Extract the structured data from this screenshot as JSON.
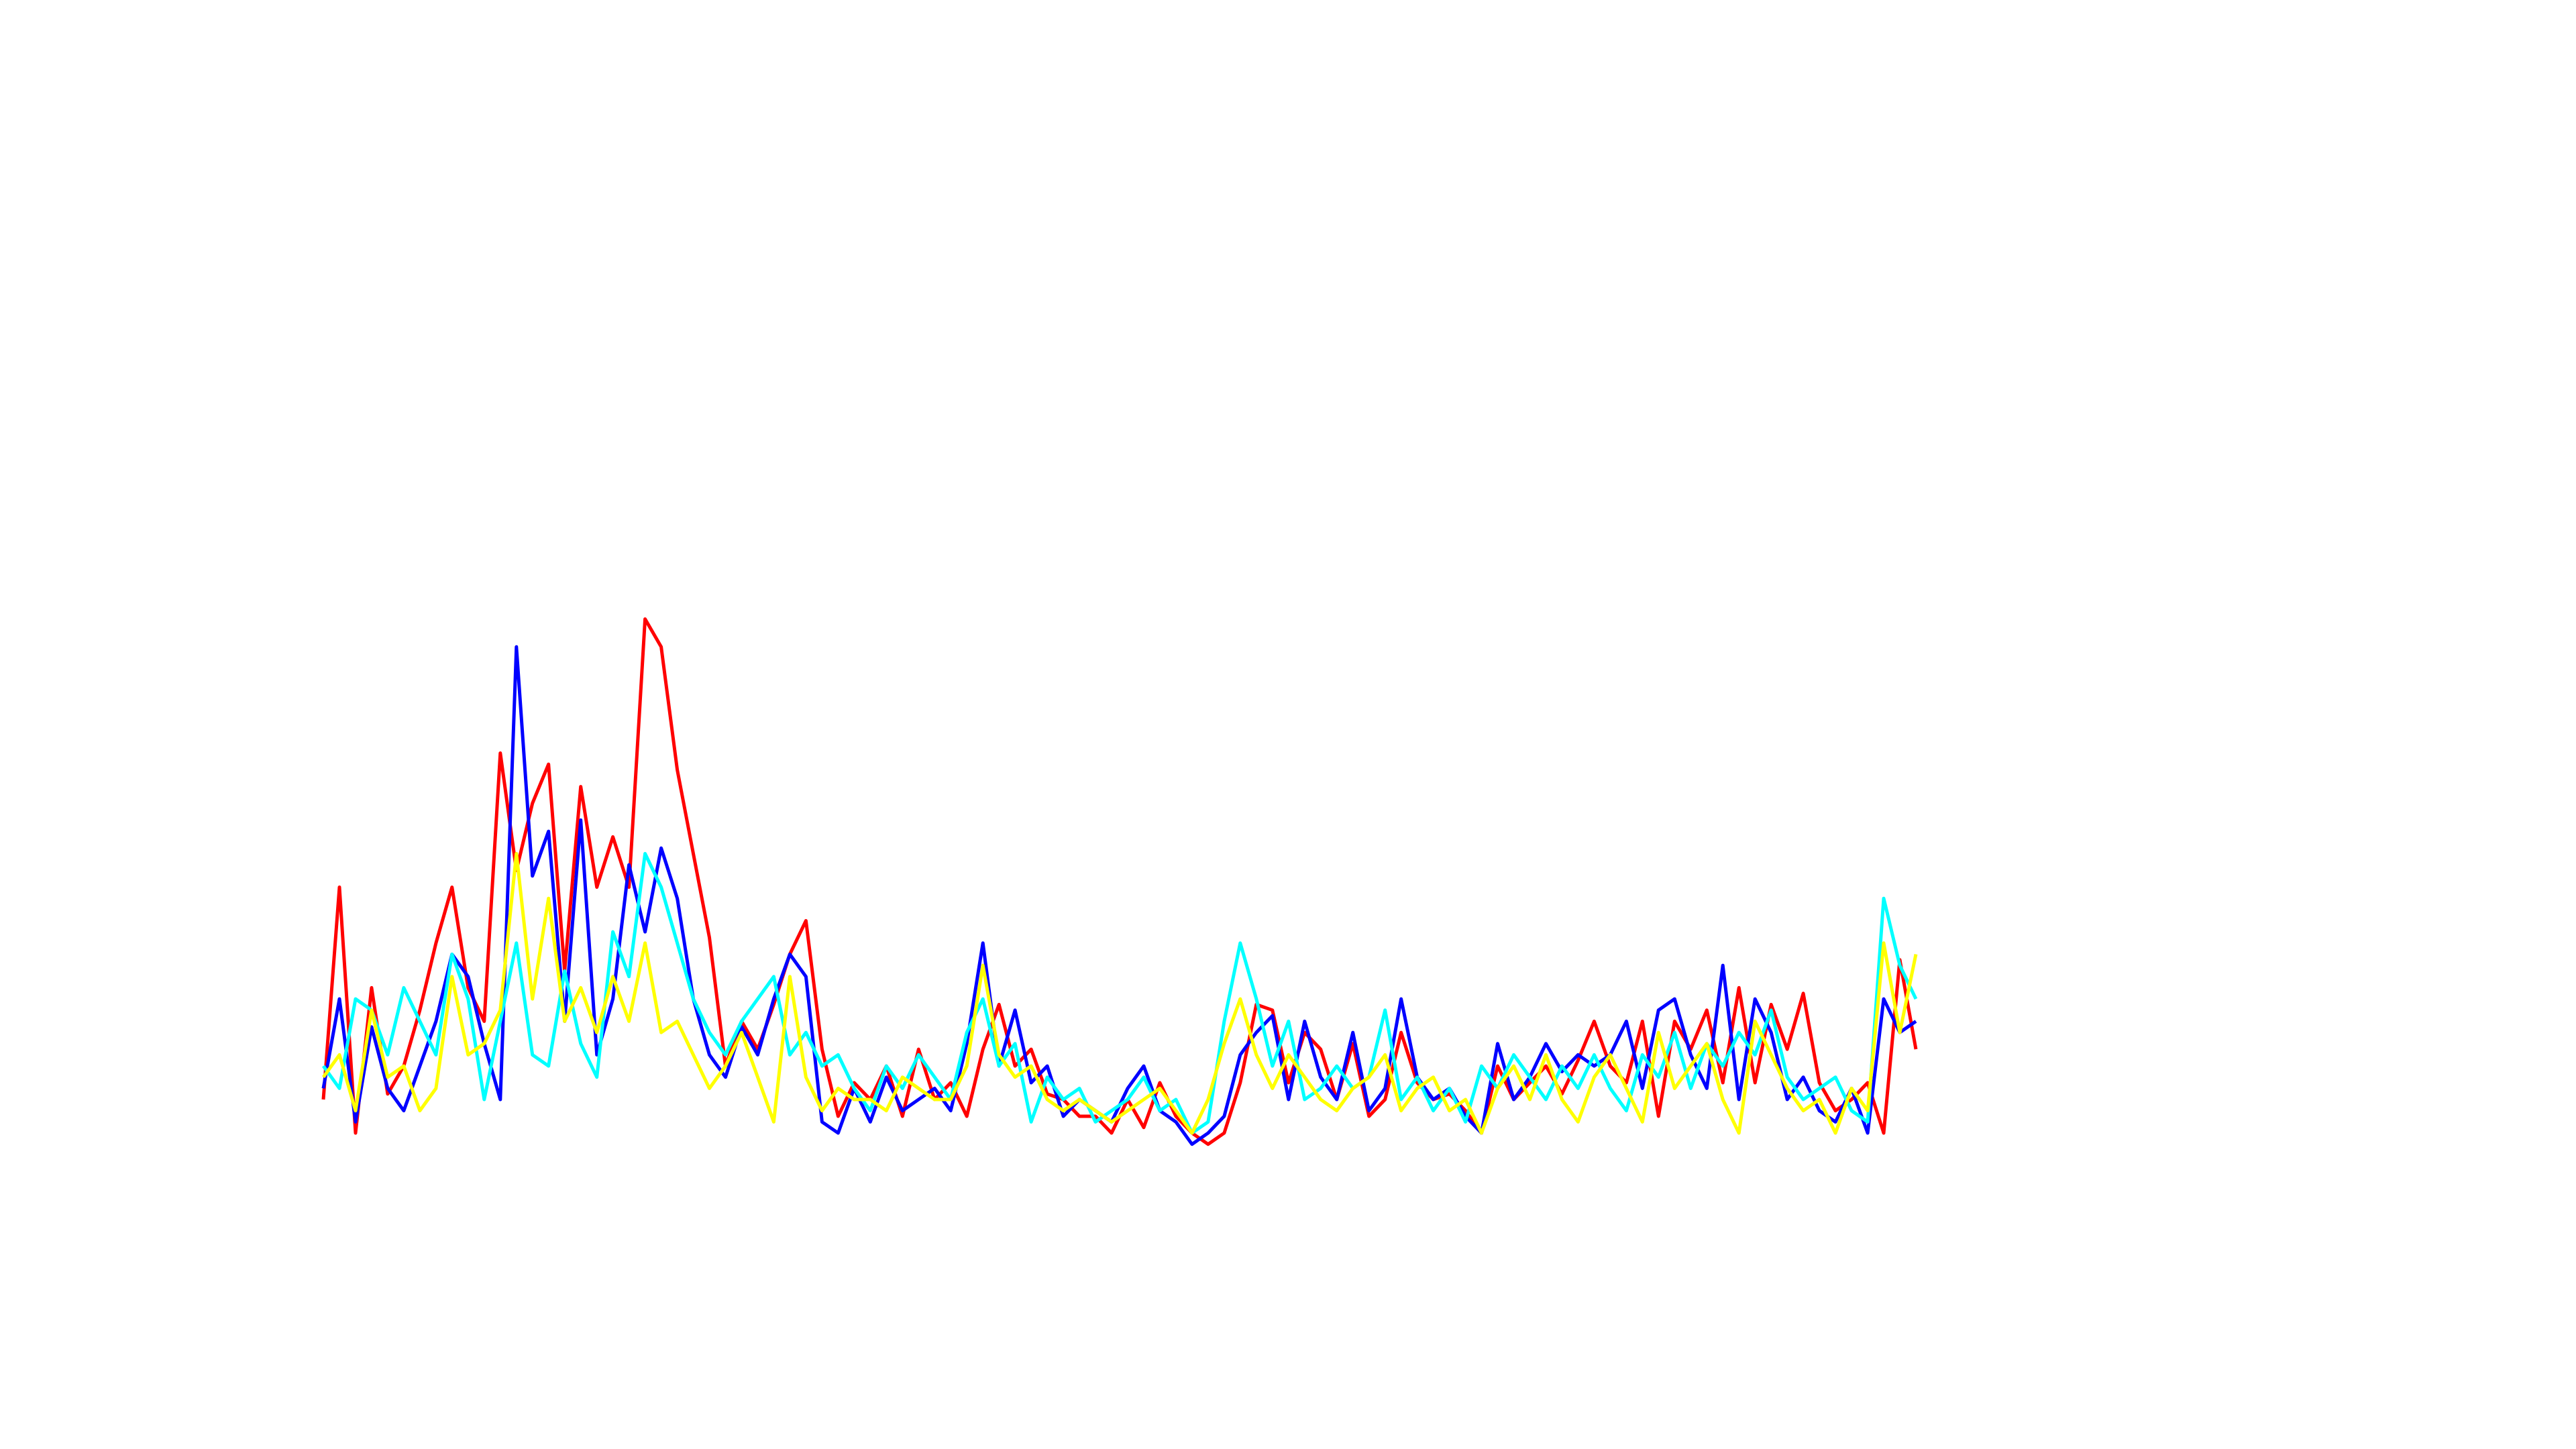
{
  "chart_data": {
    "type": "line",
    "ylim": [
      0,
      100
    ],
    "series": [
      {
        "color": "#ff0000",
        "values": [
          12,
          50,
          6,
          32,
          13,
          18,
          28,
          40,
          50,
          32,
          26,
          74,
          53,
          65,
          72,
          35,
          68,
          50,
          59,
          50,
          98,
          93,
          71,
          56,
          41,
          18,
          26,
          21,
          29,
          38,
          44,
          21,
          9,
          15,
          12,
          18,
          9,
          21,
          12,
          15,
          9,
          21,
          29,
          18,
          21,
          13,
          12,
          9,
          9,
          6,
          12,
          7,
          15,
          9,
          6,
          4,
          6,
          15,
          29,
          28,
          15,
          24,
          21,
          12,
          22,
          9,
          12,
          24,
          15,
          12,
          13,
          10,
          6,
          18,
          12,
          15,
          18,
          13,
          19,
          26,
          18,
          15,
          26,
          9,
          26,
          21,
          28,
          15,
          32,
          15,
          29,
          21,
          31,
          15,
          10,
          12,
          15,
          6,
          37,
          21
        ]
      },
      {
        "color": "#0000ff",
        "values": [
          14,
          30,
          8,
          25,
          14,
          10,
          18,
          26,
          38,
          34,
          22,
          12,
          93,
          52,
          60,
          26,
          62,
          20,
          30,
          54,
          42,
          57,
          48,
          30,
          20,
          16,
          25,
          20,
          30,
          38,
          34,
          8,
          6,
          14,
          8,
          16,
          10,
          12,
          14,
          10,
          22,
          40,
          18,
          28,
          15,
          18,
          9,
          12,
          10,
          8,
          14,
          18,
          10,
          8,
          4,
          6,
          9,
          20,
          24,
          27,
          12,
          26,
          16,
          12,
          24,
          10,
          14,
          30,
          16,
          12,
          14,
          9,
          6,
          22,
          12,
          16,
          22,
          17,
          20,
          18,
          20,
          26,
          14,
          28,
          30,
          20,
          14,
          36,
          12,
          30,
          24,
          12,
          16,
          10,
          8,
          14,
          6,
          30,
          24,
          26
        ]
      },
      {
        "color": "#00ffff",
        "values": [
          18,
          14,
          30,
          28,
          20,
          32,
          26,
          20,
          38,
          30,
          12,
          26,
          40,
          20,
          18,
          35,
          22,
          16,
          42,
          34,
          56,
          50,
          40,
          30,
          24,
          20,
          26,
          30,
          34,
          20,
          24,
          18,
          20,
          14,
          10,
          18,
          14,
          20,
          16,
          12,
          24,
          30,
          18,
          22,
          8,
          16,
          12,
          14,
          8,
          10,
          12,
          16,
          10,
          12,
          6,
          8,
          26,
          40,
          30,
          18,
          26,
          12,
          14,
          18,
          14,
          16,
          28,
          12,
          16,
          10,
          14,
          8,
          18,
          14,
          20,
          16,
          12,
          18,
          14,
          20,
          14,
          10,
          20,
          16,
          24,
          14,
          22,
          18,
          24,
          20,
          28,
          16,
          12,
          14,
          16,
          10,
          8,
          48,
          36,
          30
        ]
      },
      {
        "color": "#ffff00",
        "values": [
          16,
          20,
          10,
          28,
          16,
          18,
          10,
          14,
          34,
          20,
          22,
          28,
          56,
          30,
          48,
          26,
          32,
          24,
          34,
          26,
          40,
          24,
          26,
          20,
          14,
          18,
          24,
          16,
          8,
          34,
          16,
          10,
          14,
          12,
          12,
          10,
          16,
          14,
          12,
          12,
          18,
          36,
          20,
          16,
          18,
          12,
          10,
          12,
          10,
          8,
          10,
          12,
          14,
          10,
          6,
          12,
          22,
          30,
          20,
          14,
          20,
          16,
          12,
          10,
          14,
          16,
          20,
          10,
          14,
          16,
          10,
          12,
          6,
          14,
          18,
          12,
          20,
          12,
          8,
          16,
          20,
          14,
          8,
          24,
          14,
          18,
          22,
          12,
          6,
          26,
          20,
          14,
          10,
          12,
          6,
          14,
          10,
          40,
          24,
          38
        ]
      }
    ]
  }
}
